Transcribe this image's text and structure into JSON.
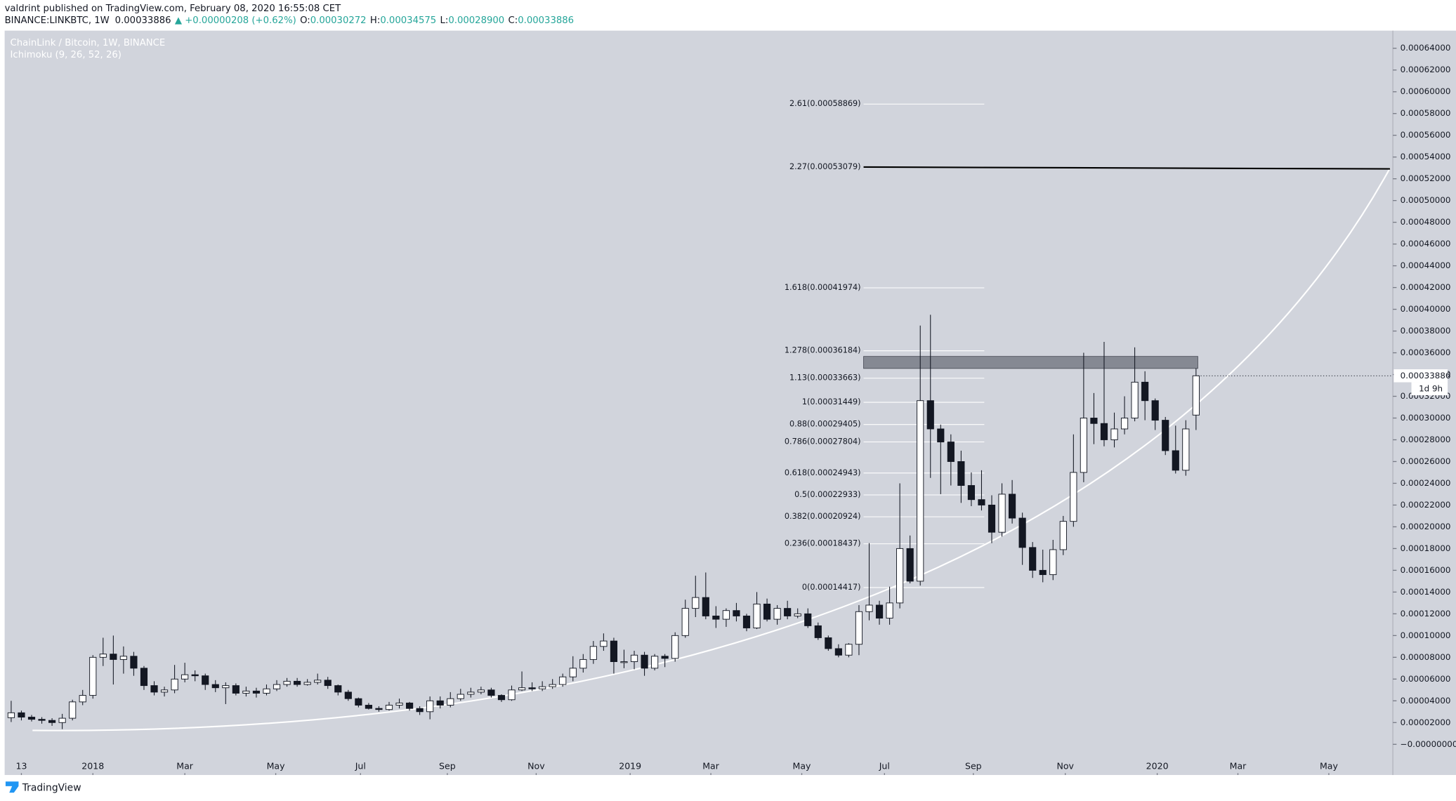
{
  "header": {
    "publisher": "valdrint published on TradingView.com, February 08, 2020 16:55:08 CET",
    "symbol": "BINANCE:LINKBTC, 1W",
    "last": "0.00033886",
    "change": "▲ +0.00000208 (+0.62%)",
    "ohlc": [
      {
        "key": "O:",
        "value": "0.00030272"
      },
      {
        "key": "H:",
        "value": "0.00034575"
      },
      {
        "key": "L:",
        "value": "0.00028900"
      },
      {
        "key": "C:",
        "value": "0.00033886"
      }
    ]
  },
  "chart_data": {
    "type": "candlestick",
    "title": "ChainLink / Bitcoin, 1W, BINANCE",
    "indicator": "Ichimoku (9, 26, 52, 26)",
    "up_color": "#ffffff",
    "down_color": "#131722",
    "xlim": [
      -0.64,
      135.27
    ],
    "ylim": [
      -2.82e-05,
      0.0006562
    ],
    "xticks": [
      {
        "value": 1,
        "label": "13"
      },
      {
        "value": 8,
        "label": "2018"
      },
      {
        "value": 17,
        "label": "Mar"
      },
      {
        "value": 25.9,
        "label": "May"
      },
      {
        "value": 34.2,
        "label": "Jul"
      },
      {
        "value": 42.7,
        "label": "Sep"
      },
      {
        "value": 51.4,
        "label": "Nov"
      },
      {
        "value": 60.6,
        "label": "2019"
      },
      {
        "value": 68.5,
        "label": "Mar"
      },
      {
        "value": 77.4,
        "label": "May"
      },
      {
        "value": 85.5,
        "label": "Jul"
      },
      {
        "value": 94.2,
        "label": "Sep"
      },
      {
        "value": 103.2,
        "label": "Nov"
      },
      {
        "value": 112.2,
        "label": "2020"
      },
      {
        "value": 120.1,
        "label": "Mar"
      },
      {
        "value": 129,
        "label": "May"
      }
    ],
    "yticks": [
      {
        "value": 0,
        "label": "−0.00000000"
      },
      {
        "value": 2e-05,
        "label": "0.00002000"
      },
      {
        "value": 4e-05,
        "label": "0.00004000"
      },
      {
        "value": 6e-05,
        "label": "0.00006000"
      },
      {
        "value": 8e-05,
        "label": "0.00008000"
      },
      {
        "value": 0.0001,
        "label": "0.00010000"
      },
      {
        "value": 0.00012,
        "label": "0.00012000"
      },
      {
        "value": 0.00014,
        "label": "0.00014000"
      },
      {
        "value": 0.00016,
        "label": "0.00016000"
      },
      {
        "value": 0.00018,
        "label": "0.00018000"
      },
      {
        "value": 0.0002,
        "label": "0.00020000"
      },
      {
        "value": 0.00022,
        "label": "0.00022000"
      },
      {
        "value": 0.00024,
        "label": "0.00024000"
      },
      {
        "value": 0.00026,
        "label": "0.00026000"
      },
      {
        "value": 0.00028,
        "label": "0.00028000"
      },
      {
        "value": 0.0003,
        "label": "0.00030000"
      },
      {
        "value": 0.00032,
        "label": "0.00032000"
      },
      {
        "value": 0.00034,
        "label": "0.00034000"
      },
      {
        "value": 0.00036,
        "label": "0.00036000"
      },
      {
        "value": 0.00038,
        "label": "0.00038000"
      },
      {
        "value": 0.0004,
        "label": "0.00040000"
      },
      {
        "value": 0.00042,
        "label": "0.00042000"
      },
      {
        "value": 0.00044,
        "label": "0.00044000"
      },
      {
        "value": 0.00046,
        "label": "0.00046000"
      },
      {
        "value": 0.00048,
        "label": "0.00048000"
      },
      {
        "value": 0.0005,
        "label": "0.00050000"
      },
      {
        "value": 0.00052,
        "label": "0.00052000"
      },
      {
        "value": 0.00054,
        "label": "0.00054000"
      },
      {
        "value": 0.00056,
        "label": "0.00056000"
      },
      {
        "value": 0.00058,
        "label": "0.00058000"
      },
      {
        "value": 0.0006,
        "label": "0.00060000"
      },
      {
        "value": 0.00062,
        "label": "0.00062000"
      },
      {
        "value": 0.00064,
        "label": "0.00064000"
      }
    ],
    "ohlc": [
      [
        2.45e-05,
        4e-05,
        2.05e-05,
        2.9e-05
      ],
      [
        2.9e-05,
        3.1e-05,
        2.2e-05,
        2.5e-05
      ],
      [
        2.5e-05,
        2.7e-05,
        2.1e-05,
        2.3e-05
      ],
      [
        2.3e-05,
        2.5e-05,
        1.9e-05,
        2.2e-05
      ],
      [
        2.2e-05,
        2.4e-05,
        1.7e-05,
        2e-05
      ],
      [
        2e-05,
        2.8e-05,
        1.4e-05,
        2.4e-05
      ],
      [
        2.4e-05,
        4.1e-05,
        2.2e-05,
        3.9e-05
      ],
      [
        3.9e-05,
        5e-05,
        3.6e-05,
        4.5e-05
      ],
      [
        4.5e-05,
        8.2e-05,
        4.2e-05,
        8e-05
      ],
      [
        8e-05,
        9.8e-05,
        7.2e-05,
        8.3e-05
      ],
      [
        8.3e-05,
        0.0001,
        5.5e-05,
        7.8e-05
      ],
      [
        7.8e-05,
        9e-05,
        6.5e-05,
        8.1e-05
      ],
      [
        8.1e-05,
        8.5e-05,
        6.3e-05,
        7e-05
      ],
      [
        7e-05,
        7.2e-05,
        5e-05,
        5.4e-05
      ],
      [
        5.4e-05,
        5.8e-05,
        4.5e-05,
        4.8e-05
      ],
      [
        4.8e-05,
        5.3e-05,
        4.4e-05,
        5e-05
      ],
      [
        5e-05,
        7.3e-05,
        4.7e-05,
        6e-05
      ],
      [
        6e-05,
        7.5e-05,
        5.7e-05,
        6.4e-05
      ],
      [
        6.4e-05,
        6.8e-05,
        5.8e-05,
        6.3e-05
      ],
      [
        6.3e-05,
        6.5e-05,
        5e-05,
        5.5e-05
      ],
      [
        5.5e-05,
        5.9e-05,
        4.8e-05,
        5.2e-05
      ],
      [
        5.2e-05,
        5.7e-05,
        3.7e-05,
        5.4e-05
      ],
      [
        5.4e-05,
        5.6e-05,
        4.5e-05,
        4.7e-05
      ],
      [
        4.7e-05,
        5.3e-05,
        4.4e-05,
        4.9e-05
      ],
      [
        4.9e-05,
        5.2e-05,
        4.3e-05,
        4.7e-05
      ],
      [
        4.7e-05,
        5.5e-05,
        4.5e-05,
        5.1e-05
      ],
      [
        5.1e-05,
        5.9e-05,
        4.9e-05,
        5.5e-05
      ],
      [
        5.5e-05,
        6.1e-05,
        5.3e-05,
        5.8e-05
      ],
      [
        5.8e-05,
        6.1e-05,
        5.3e-05,
        5.5e-05
      ],
      [
        5.5e-05,
        6e-05,
        5.4e-05,
        5.7e-05
      ],
      [
        5.7e-05,
        6.5e-05,
        5.5e-05,
        5.9e-05
      ],
      [
        5.9e-05,
        6.2e-05,
        5.1e-05,
        5.4e-05
      ],
      [
        5.4e-05,
        5.5e-05,
        4.5e-05,
        4.8e-05
      ],
      [
        4.8e-05,
        5e-05,
        4e-05,
        4.2e-05
      ],
      [
        4.2e-05,
        4.3e-05,
        3.4e-05,
        3.6e-05
      ],
      [
        3.6e-05,
        3.8e-05,
        3.2e-05,
        3.3e-05
      ],
      [
        3.3e-05,
        3.5e-05,
        3e-05,
        3.2e-05
      ],
      [
        3.2e-05,
        3.9e-05,
        3.1e-05,
        3.6e-05
      ],
      [
        3.6e-05,
        4.2e-05,
        3.3e-05,
        3.8e-05
      ],
      [
        3.8e-05,
        3.9e-05,
        3.1e-05,
        3.3e-05
      ],
      [
        3.3e-05,
        3.5e-05,
        2.7e-05,
        3e-05
      ],
      [
        3e-05,
        4.4e-05,
        2.3e-05,
        4e-05
      ],
      [
        4e-05,
        4.4e-05,
        3.3e-05,
        3.6e-05
      ],
      [
        3.6e-05,
        4.8e-05,
        3.4e-05,
        4.2e-05
      ],
      [
        4.2e-05,
        5.1e-05,
        4e-05,
        4.6e-05
      ],
      [
        4.6e-05,
        5.2e-05,
        4.3e-05,
        4.8e-05
      ],
      [
        4.8e-05,
        5.3e-05,
        4.6e-05,
        5e-05
      ],
      [
        5e-05,
        5.2e-05,
        4.3e-05,
        4.5e-05
      ],
      [
        4.5e-05,
        4.6e-05,
        3.9e-05,
        4.1e-05
      ],
      [
        4.1e-05,
        5.4e-05,
        4e-05,
        5e-05
      ],
      [
        5e-05,
        6.7e-05,
        4.9e-05,
        5.2e-05
      ],
      [
        5.2e-05,
        5.7e-05,
        4.9e-05,
        5.1e-05
      ],
      [
        5.1e-05,
        5.8e-05,
        4.9e-05,
        5.3e-05
      ],
      [
        5.3e-05,
        6e-05,
        5.1e-05,
        5.5e-05
      ],
      [
        5.5e-05,
        6.5e-05,
        5.3e-05,
        6.2e-05
      ],
      [
        6.2e-05,
        8.1e-05,
        5.8e-05,
        7e-05
      ],
      [
        7e-05,
        8.3e-05,
        6.6e-05,
        7.8e-05
      ],
      [
        7.8e-05,
        9.5e-05,
        7.4e-05,
        9e-05
      ],
      [
        9e-05,
        0.000102,
        8.6e-05,
        9.5e-05
      ],
      [
        9.5e-05,
        9.8e-05,
        6.5e-05,
        7.6e-05
      ],
      [
        7.6e-05,
        8.7e-05,
        7e-05,
        7.6e-05
      ],
      [
        7.6e-05,
        8.6e-05,
        6.9e-05,
        8.2e-05
      ],
      [
        8.2e-05,
        8.5e-05,
        6.3e-05,
        7e-05
      ],
      [
        7e-05,
        8.3e-05,
        6.8e-05,
        8.1e-05
      ],
      [
        8.1e-05,
        8.3e-05,
        7.1e-05,
        7.9e-05
      ],
      [
        7.9e-05,
        0.000103,
        7.6e-05,
        0.0001
      ],
      [
        0.0001,
        0.000133,
        9.8e-05,
        0.000125
      ],
      [
        0.000125,
        0.000155,
        0.000117,
        0.000135
      ],
      [
        0.000135,
        0.000158,
        0.000115,
        0.000118
      ],
      [
        0.000118,
        0.000127,
        0.000107,
        0.000115
      ],
      [
        0.000115,
        0.000125,
        0.000108,
        0.000123
      ],
      [
        0.000123,
        0.00013,
        0.000113,
        0.000118
      ],
      [
        0.000118,
        0.00012,
        0.000104,
        0.000107
      ],
      [
        0.000107,
        0.00014,
        0.000106,
        0.000129
      ],
      [
        0.000129,
        0.000134,
        0.000113,
        0.000115
      ],
      [
        0.000115,
        0.000128,
        0.00011,
        0.000125
      ],
      [
        0.000125,
        0.000132,
        0.000115,
        0.000118
      ],
      [
        0.000118,
        0.000125,
        0.000116,
        0.00012
      ],
      [
        0.00012,
        0.000125,
        0.000107,
        0.000109
      ],
      [
        0.000109,
        0.000112,
        9.6e-05,
        9.8e-05
      ],
      [
        9.8e-05,
        0.0001,
        8.6e-05,
        8.8e-05
      ],
      [
        8.8e-05,
        9.2e-05,
        8e-05,
        8.2e-05
      ],
      [
        8.2e-05,
        9.3e-05,
        8e-05,
        9.2e-05
      ],
      [
        9.2e-05,
        0.000128,
        8.2e-05,
        0.000122
      ],
      [
        0.000122,
        0.000185,
        0.000114,
        0.000128
      ],
      [
        0.000128,
        0.000132,
        0.00011,
        0.000116
      ],
      [
        0.000116,
        0.000145,
        0.00011,
        0.00013
      ],
      [
        0.00013,
        0.00024,
        0.000125,
        0.00018
      ],
      [
        0.00018,
        0.000192,
        0.000148,
        0.00015
      ],
      [
        0.00015,
        0.000385,
        0.000146,
        0.000316
      ],
      [
        0.000316,
        0.000395,
        0.000245,
        0.00029
      ],
      [
        0.00029,
        0.000294,
        0.00023,
        0.000278
      ],
      [
        0.000278,
        0.000285,
        0.000238,
        0.00026
      ],
      [
        0.00026,
        0.00027,
        0.000222,
        0.000238
      ],
      [
        0.000238,
        0.00025,
        0.000219,
        0.000225
      ],
      [
        0.000225,
        0.000252,
        0.000215,
        0.00022
      ],
      [
        0.00022,
        0.000229,
        0.000185,
        0.000195
      ],
      [
        0.000195,
        0.00024,
        0.000191,
        0.00023
      ],
      [
        0.00023,
        0.000243,
        0.000203,
        0.000208
      ],
      [
        0.000208,
        0.000213,
        0.000165,
        0.000181
      ],
      [
        0.000181,
        0.000186,
        0.000153,
        0.00016
      ],
      [
        0.00016,
        0.000179,
        0.000149,
        0.000156
      ],
      [
        0.000156,
        0.000188,
        0.000151,
        0.000179
      ],
      [
        0.000179,
        0.00021,
        0.000174,
        0.000205
      ],
      [
        0.000205,
        0.000285,
        0.0002,
        0.00025
      ],
      [
        0.00025,
        0.00036,
        0.000241,
        0.0003
      ],
      [
        0.0003,
        0.000323,
        0.000276,
        0.000295
      ],
      [
        0.000295,
        0.00037,
        0.000274,
        0.00028
      ],
      [
        0.00028,
        0.000305,
        0.000273,
        0.00029
      ],
      [
        0.00029,
        0.00032,
        0.000285,
        0.0003
      ],
      [
        0.0003,
        0.000365,
        0.000297,
        0.000333
      ],
      [
        0.000333,
        0.000343,
        0.000298,
        0.000316
      ],
      [
        0.000316,
        0.000318,
        0.000289,
        0.000298
      ],
      [
        0.000298,
        0.000301,
        0.000266,
        0.00027
      ],
      [
        0.00027,
        0.000293,
        0.000249,
        0.000252
      ],
      [
        0.000252,
        0.000298,
        0.000247,
        0.00029
      ],
      [
        0.00030272,
        0.00034575,
        0.000289,
        0.00033886
      ]
    ],
    "fib_levels": [
      {
        "value": 0.00058869,
        "label": "2.61(0.00058869)"
      },
      {
        "value": 0.00053079,
        "label": "2.27(0.00053079)"
      },
      {
        "value": 0.00041974,
        "label": "1.618(0.00041974)"
      },
      {
        "value": 0.00036184,
        "label": "1.278(0.00036184)"
      },
      {
        "value": 0.00033663,
        "label": "1.13(0.00033663)"
      },
      {
        "value": 0.00031449,
        "label": "1(0.00031449)"
      },
      {
        "value": 0.00029405,
        "label": "0.88(0.00029405)"
      },
      {
        "value": 0.00027804,
        "label": "0.786(0.00027804)"
      },
      {
        "value": 0.00024943,
        "label": "0.618(0.00024943)"
      },
      {
        "value": 0.00022933,
        "label": "0.5(0.00022933)"
      },
      {
        "value": 0.00020924,
        "label": "0.382(0.00020924)"
      },
      {
        "value": 0.00018437,
        "label": "0.236(0.00018437)"
      },
      {
        "value": 0.00014417,
        "label": "0(0.00014417)"
      }
    ],
    "target_line": 0.00053079,
    "resistance_zone": [
      0.0003456,
      0.00035668
    ],
    "last_price": {
      "value": 0.00033886,
      "label": "0.00033886",
      "countdown": "1d 9h"
    }
  },
  "footer": {
    "brand": "TradingView"
  }
}
